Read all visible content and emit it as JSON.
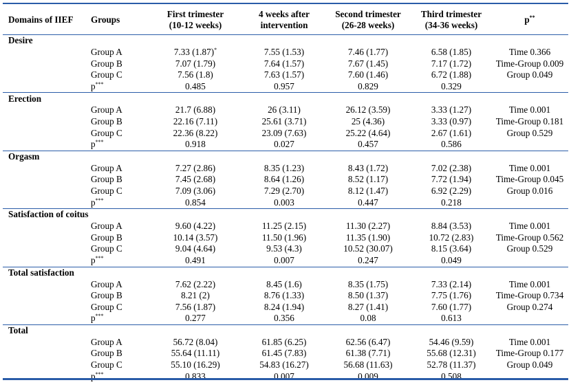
{
  "header": {
    "domain": "Domains of IIEF",
    "groups": "Groups",
    "t1": [
      "First trimester",
      "(10-12 weeks)"
    ],
    "t2": [
      "4 weeks after",
      "intervention"
    ],
    "t3": [
      "Second trimester",
      "(26-28 weeks)"
    ],
    "t4": [
      "Third trimester",
      "(34-36 weeks)"
    ],
    "p": "p",
    "p_sup": "**"
  },
  "p_label": "p",
  "p_label_sup": "***",
  "sections": [
    {
      "name": "Desire",
      "rows": [
        {
          "group": "Group A",
          "t1": "7.33 (1.87)",
          "t1_sup": "*",
          "t2": "7.55 (1.53)",
          "t3": "7.46 (1.77)",
          "t4": "6.58 (1.85)",
          "p": "Time 0.366"
        },
        {
          "group": "Group B",
          "t1": "7.07 (1.79)",
          "t2": "7.64 (1.57)",
          "t3": "7.67 (1.45)",
          "t4": "7.17 (1.72)",
          "p": "Time-Group 0.009"
        },
        {
          "group": "Group C",
          "t1": "7.56 (1.8)",
          "t2": "7.63 (1.57)",
          "t3": "7.60 (1.46)",
          "t4": "6.72 (1.88)",
          "p": "Group 0.049"
        }
      ],
      "pvals": [
        "0.485",
        "0.957",
        "0.829",
        "0.329"
      ]
    },
    {
      "name": "Erection",
      "rows": [
        {
          "group": "Group A",
          "t1": "21.7 (6.88)",
          "t2": "26 (3.11)",
          "t3": "26.12 (3.59)",
          "t4": "3.33 (1.27)",
          "p": "Time 0.001"
        },
        {
          "group": "Group B",
          "t1": "22.16 (7.11)",
          "t2": "25.61 (3.71)",
          "t3": "25 (4.36)",
          "t4": "3.33 (0.97)",
          "p": "Time-Group 0.181"
        },
        {
          "group": "Group C",
          "t1": "22.36 (8.22)",
          "t2": "23.09 (7.63)",
          "t3": "25.22 (4.64)",
          "t4": "2.67 (1.61)",
          "p": "Group 0.529"
        }
      ],
      "pvals": [
        "0.918",
        "0.027",
        "0.457",
        "0.586"
      ]
    },
    {
      "name": "Orgasm",
      "rows": [
        {
          "group": "Group A",
          "t1": "7.27 (2.86)",
          "t2": "8.35 (1.23)",
          "t3": "8.43 (1.72)",
          "t4": "7.02 (2.38)",
          "p": "Time 0.001"
        },
        {
          "group": "Group B",
          "t1": "7.45 (2.68)",
          "t2": "8.64 (1.26)",
          "t3": "8.52 (1.17)",
          "t4": "7.72 (1.94)",
          "p": "Time-Group 0.045"
        },
        {
          "group": "Group C",
          "t1": "7.09 (3.06)",
          "t2": "7.29 (2.70)",
          "t3": "8.12 (1.47)",
          "t4": "6.92 (2.29)",
          "p": "Group 0.016"
        }
      ],
      "pvals": [
        "0.854",
        "0.003",
        "0.447",
        "0.218"
      ]
    },
    {
      "name": "Satisfaction of coitus",
      "rows": [
        {
          "group": "Group A",
          "t1": "9.60 (4.22)",
          "t2": "11.25 (2.15)",
          "t3": "11.30 (2.27)",
          "t4": "8.84 (3.53)",
          "p": "Time 0.001"
        },
        {
          "group": "Group B",
          "t1": "10.14 (3.57)",
          "t2": "11.50 (1.96)",
          "t3": "11.35 (1.90)",
          "t4": "10.72 (2.83)",
          "p": "Time-Group 0.562"
        },
        {
          "group": "Group C",
          "t1": "9.04 (4.64)",
          "t2": "9.53 (4.3)",
          "t3": "10.52 (30.07)",
          "t4": "8.15 (3.64)",
          "p": "Group 0.529"
        }
      ],
      "pvals": [
        "0.491",
        "0.007",
        "0.247",
        "0.049"
      ]
    },
    {
      "name": "Total satisfaction",
      "rows": [
        {
          "group": "Group A",
          "t1": "7.62 (2.22)",
          "t2": "8.45 (1.6)",
          "t3": "8.35 (1.75)",
          "t4": "7.33 (2.14)",
          "p": "Time 0.001"
        },
        {
          "group": "Group B",
          "t1": "8.21 (2)",
          "t2": "8.76 (1.33)",
          "t3": "8.50 (1.37)",
          "t4": "7.75  (1.76)",
          "p": "Time-Group 0.734"
        },
        {
          "group": "Group C",
          "t1": "7.56 (1.87)",
          "t2": "8.24 (1.94)",
          "t3": "8.27 (1.41)",
          "t4": "7.60 (1.77)",
          "p": "Group 0.274"
        }
      ],
      "pvals": [
        "0.277",
        "0.356",
        "0.08",
        "0.613"
      ]
    },
    {
      "name": "Total",
      "rows": [
        {
          "group": "Group A",
          "t1": "56.72 (8.04)",
          "t2": "61.85 (6.25)",
          "t3": "62.56 (6.47)",
          "t4": "54.46 (9.59)",
          "p": "Time 0.001"
        },
        {
          "group": "Group B",
          "t1": "55.64 (11.11)",
          "t2": "61.45 (7.83)",
          "t3": "61.38 (7.71)",
          "t4": "55.68 (12.31)",
          "p": "Time-Group 0.177"
        },
        {
          "group": "Group C",
          "t1": "55.10 (16.29)",
          "t2": "54.83 (16.27)",
          "t3": "56.68 (11.63)",
          "t4": "52.78 (11.37)",
          "p": "Group 0.049"
        }
      ],
      "pvals": [
        "0.833",
        "0.007",
        "0.009",
        "0.508"
      ]
    }
  ]
}
